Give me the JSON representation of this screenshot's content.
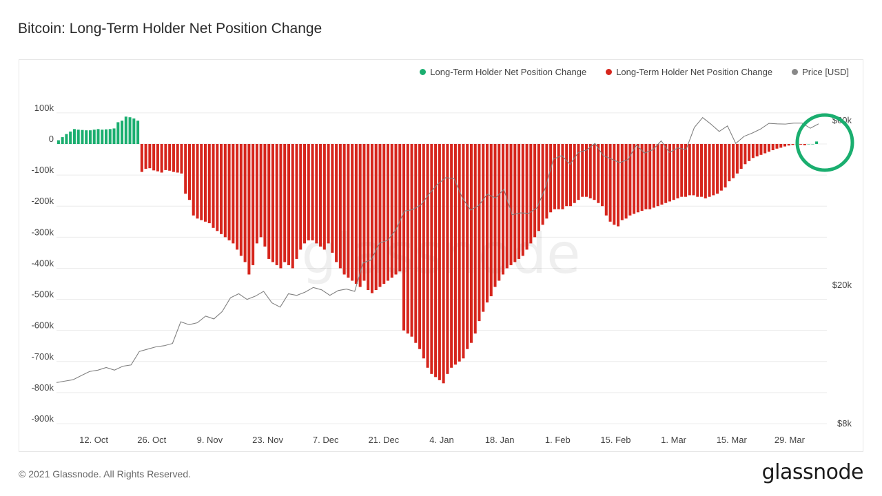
{
  "title": "Bitcoin: Long-Term Holder Net Position Change",
  "watermark": "glassnode",
  "footer": "© 2021 Glassnode. All Rights Reserved.",
  "brand": "glassnode",
  "legend": [
    {
      "label": "Long-Term Holder Net Position Change",
      "color": "#1aae6f"
    },
    {
      "label": "Long-Term Holder Net Position Change",
      "color": "#d6251c"
    },
    {
      "label": "Price [USD]",
      "color": "#888888"
    }
  ],
  "chart_data": {
    "type": "bar",
    "title": "Bitcoin: Long-Term Holder Net Position Change",
    "positive_color": "#1aae6f",
    "negative_color": "#d6251c",
    "price_color": "#808080",
    "highlight_color": "#1aae6f",
    "y_left": {
      "ticks": [
        100000,
        0,
        -100000,
        -200000,
        -300000,
        -400000,
        -500000,
        -600000,
        -700000,
        -800000,
        -900000
      ],
      "labels": [
        "100k",
        "0",
        "-100k",
        "-200k",
        "-300k",
        "-400k",
        "-500k",
        "-600k",
        "-700k",
        "-800k",
        "-900k"
      ],
      "range": [
        -900000,
        100000
      ]
    },
    "y_right": {
      "scale": "log",
      "ticks": [
        60000,
        20000,
        8000
      ],
      "labels": [
        "$60k",
        "$20k",
        "$8k"
      ]
    },
    "x_labels": [
      "12. Oct",
      "26. Oct",
      "9. Nov",
      "23. Nov",
      "7. Dec",
      "21. Dec",
      "4. Jan",
      "18. Jan",
      "1. Feb",
      "15. Feb",
      "1. Mar",
      "15. Mar",
      "29. Mar"
    ],
    "x_label_days": [
      9,
      23,
      37,
      51,
      65,
      79,
      93,
      107,
      121,
      135,
      149,
      163,
      177
    ],
    "start_date": "2020-10-03",
    "net_position_change": [
      12000,
      22000,
      32000,
      40000,
      48000,
      46000,
      45000,
      44000,
      44000,
      46000,
      48000,
      46000,
      47000,
      48000,
      50000,
      70000,
      75000,
      88000,
      86000,
      82000,
      75000,
      -90000,
      -80000,
      -78000,
      -85000,
      -88000,
      -92000,
      -84000,
      -86000,
      -90000,
      -92000,
      -95000,
      -160000,
      -180000,
      -230000,
      -240000,
      -245000,
      -250000,
      -255000,
      -270000,
      -280000,
      -290000,
      -300000,
      -310000,
      -320000,
      -340000,
      -360000,
      -380000,
      -420000,
      -390000,
      -320000,
      -300000,
      -330000,
      -370000,
      -380000,
      -390000,
      -400000,
      -380000,
      -390000,
      -400000,
      -370000,
      -340000,
      -320000,
      -310000,
      -310000,
      -320000,
      -330000,
      -340000,
      -320000,
      -350000,
      -380000,
      -400000,
      -420000,
      -430000,
      -440000,
      -450000,
      -460000,
      -440000,
      -470000,
      -480000,
      -470000,
      -460000,
      -450000,
      -440000,
      -430000,
      -420000,
      -410000,
      -600000,
      -610000,
      -620000,
      -640000,
      -660000,
      -690000,
      -720000,
      -740000,
      -750000,
      -760000,
      -770000,
      -740000,
      -720000,
      -710000,
      -700000,
      -690000,
      -660000,
      -640000,
      -610000,
      -570000,
      -540000,
      -510000,
      -490000,
      -460000,
      -440000,
      -420000,
      -400000,
      -390000,
      -380000,
      -370000,
      -360000,
      -340000,
      -320000,
      -300000,
      -280000,
      -260000,
      -240000,
      -220000,
      -210000,
      -210000,
      -210000,
      -200000,
      -200000,
      -190000,
      -180000,
      -170000,
      -170000,
      -175000,
      -180000,
      -190000,
      -200000,
      -230000,
      -250000,
      -260000,
      -265000,
      -245000,
      -240000,
      -230000,
      -225000,
      -220000,
      -215000,
      -210000,
      -210000,
      -205000,
      -200000,
      -195000,
      -190000,
      -185000,
      -180000,
      -175000,
      -170000,
      -170000,
      -165000,
      -165000,
      -170000,
      -170000,
      -175000,
      -170000,
      -165000,
      -160000,
      -150000,
      -140000,
      -120000,
      -110000,
      -95000,
      -80000,
      -65000,
      -55000,
      -45000,
      -40000,
      -35000,
      -30000,
      -25000,
      -20000,
      -15000,
      -12000,
      -8000,
      -5000,
      -3000,
      0,
      -2000,
      -4000,
      0,
      0,
      8000
    ],
    "price_usd": [
      10500,
      10600,
      10700,
      11000,
      11300,
      11400,
      11600,
      11400,
      11700,
      11800,
      12900,
      13100,
      13300,
      13400,
      13600,
      15700,
      15400,
      15600,
      16300,
      16000,
      16800,
      18400,
      18900,
      18200,
      18600,
      19200,
      17800,
      17300,
      18900,
      18700,
      19100,
      19700,
      19400,
      18700,
      19300,
      19500,
      19200,
      23200,
      23700,
      26500,
      27000,
      29000,
      32800,
      33100,
      34200,
      36800,
      39200,
      41000,
      40700,
      35800,
      33000,
      34100,
      36700,
      35800,
      37900,
      32000,
      32400,
      32300,
      33500,
      38200,
      46400,
      47500,
      44800,
      48500,
      49300,
      51500,
      47500,
      46400,
      45300,
      46300,
      50900,
      48300,
      49400,
      52400,
      48500,
      50000,
      49400,
      57300,
      61200,
      58600,
      55800,
      57900,
      51500,
      54000,
      55200,
      56700,
      58900,
      58700,
      58600,
      59000,
      59000,
      57000,
      58700
    ],
    "price_days": [
      0,
      2,
      4,
      6,
      8,
      10,
      12,
      14,
      16,
      18,
      20,
      22,
      24,
      26,
      28,
      30,
      32,
      34,
      36,
      38,
      40,
      42,
      44,
      46,
      48,
      50,
      52,
      54,
      56,
      58,
      60,
      62,
      64,
      66,
      68,
      70,
      72,
      74,
      76,
      78,
      80,
      82,
      84,
      86,
      88,
      90,
      92,
      94,
      96,
      98,
      100,
      102,
      104,
      106,
      108,
      110,
      112,
      114,
      116,
      118,
      120,
      122,
      124,
      126,
      128,
      130,
      132,
      134,
      136,
      138,
      140,
      142,
      144,
      146,
      148,
      150,
      152,
      154,
      156,
      158,
      160,
      162,
      164,
      166,
      168,
      170,
      172,
      174,
      176,
      178,
      180,
      182,
      184
    ]
  }
}
